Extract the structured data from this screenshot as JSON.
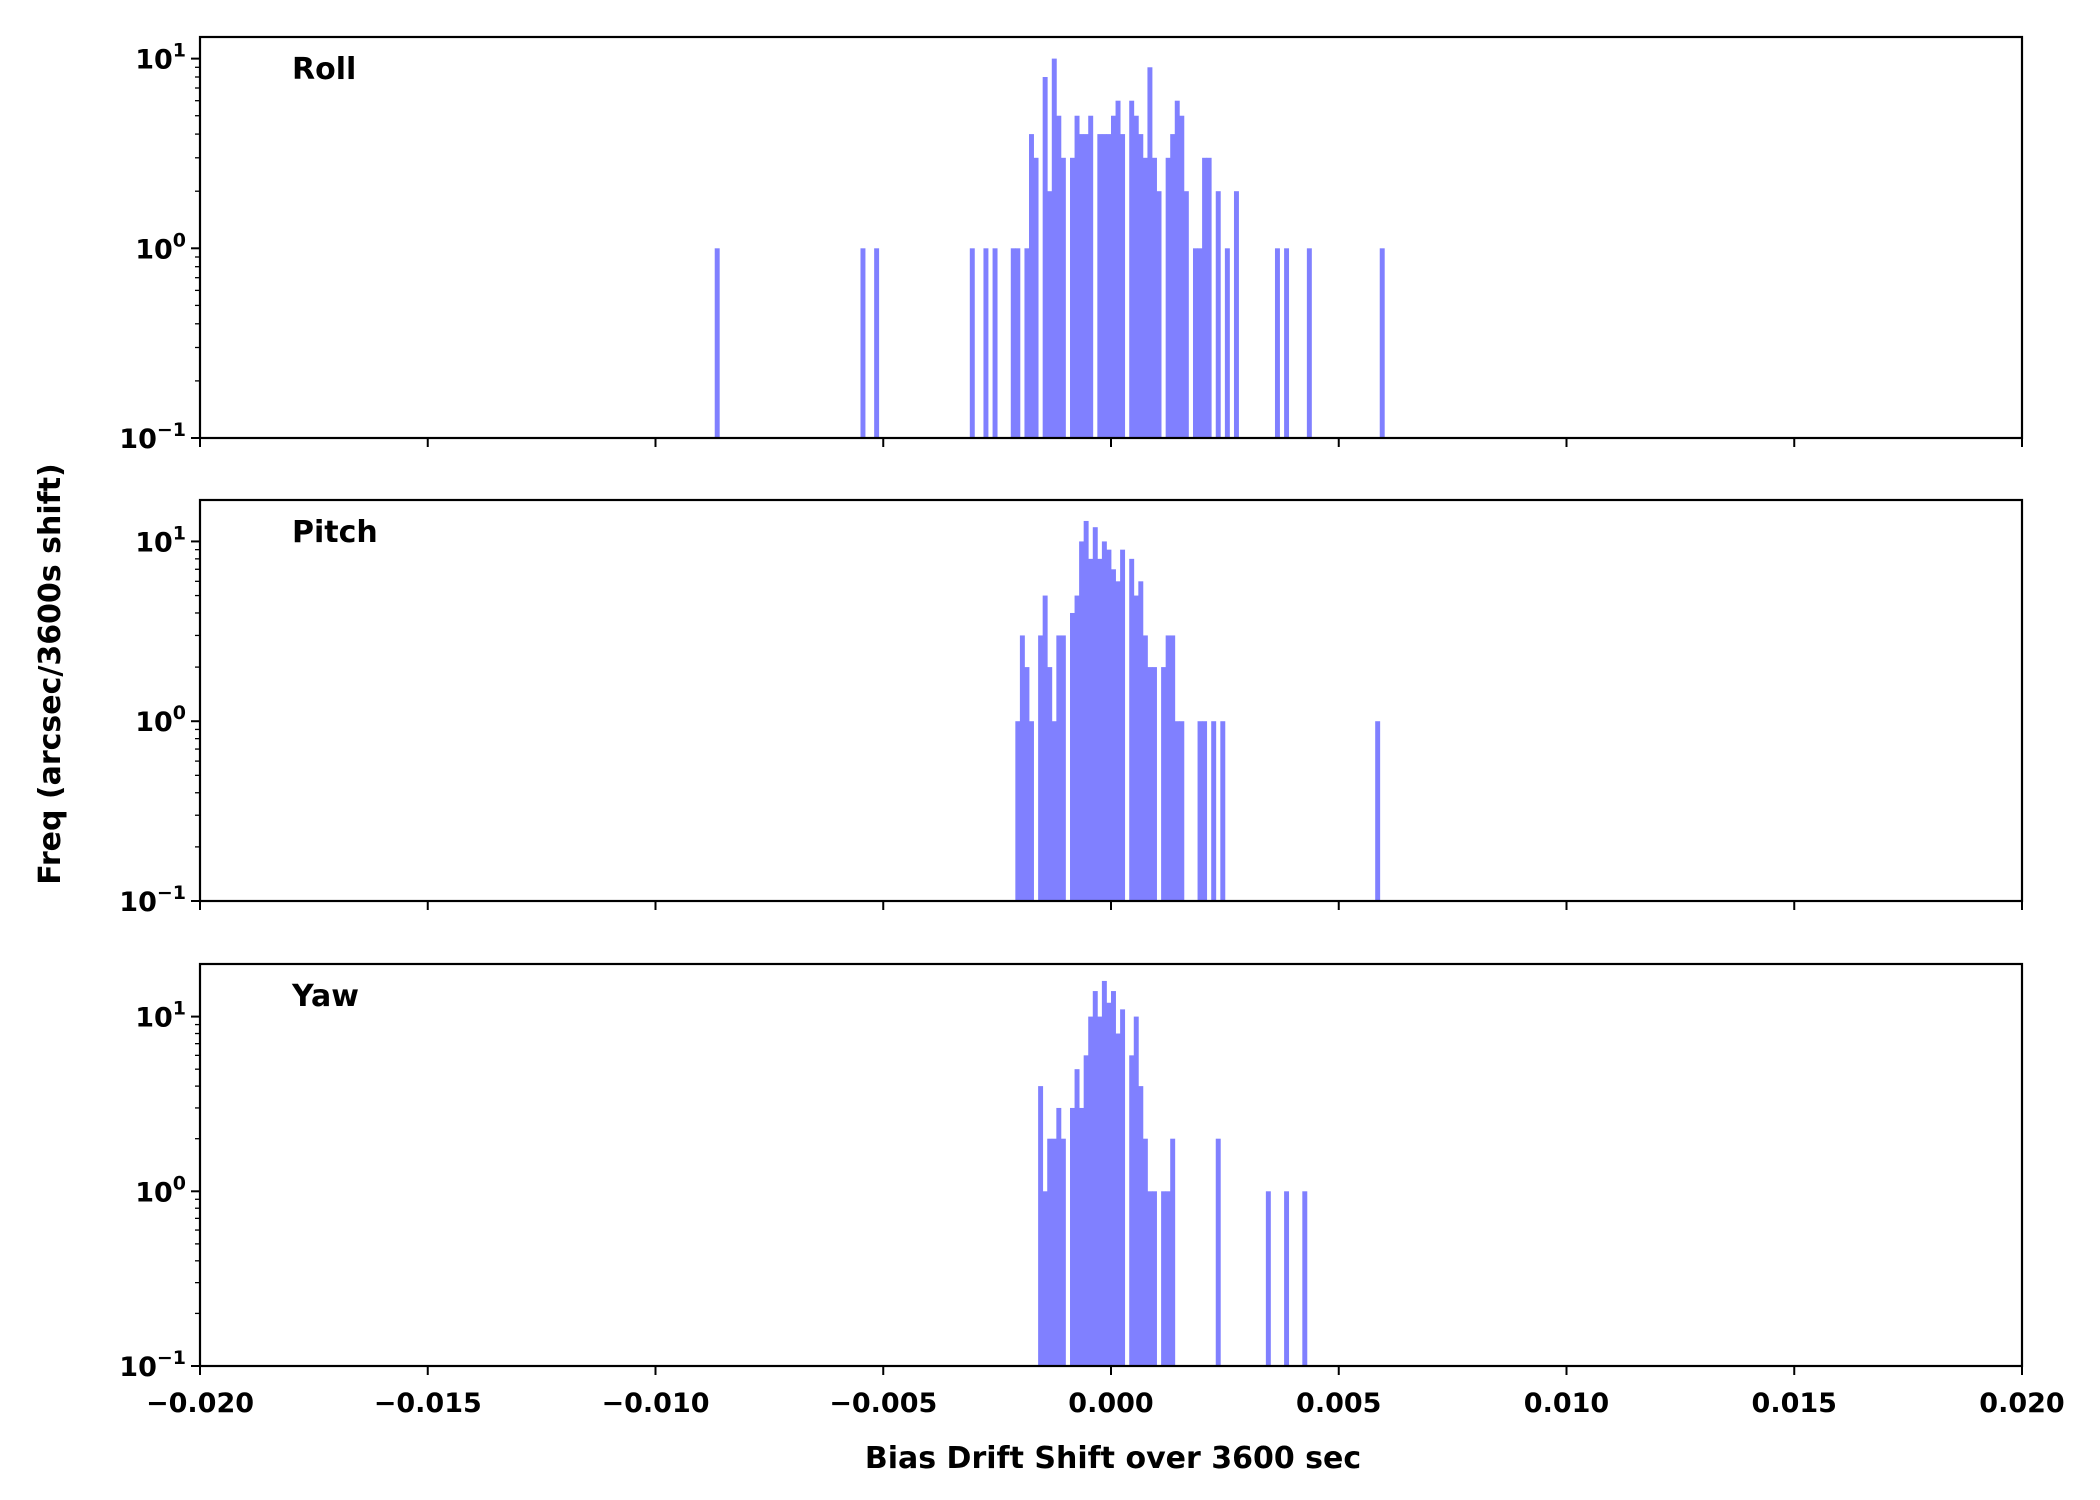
{
  "chart_data": {
    "type": "bar",
    "xlabel": "Bias Drift Shift over 3600 sec",
    "ylabel": "Freq (arcsec/3600s shift)",
    "xlim": [
      -0.02,
      0.02
    ],
    "x_ticks": [
      "−0.020",
      "−0.015",
      "−0.010",
      "−0.005",
      "0.000",
      "0.005",
      "0.010",
      "0.015",
      "0.020"
    ],
    "y_scale": "log",
    "bar_color": "#8080ff",
    "grid": false,
    "panels": [
      {
        "title": "Roll",
        "ylim": [
          0.1,
          13
        ],
        "y_ticks": [
          {
            "base": "10",
            "exp": "−1"
          },
          {
            "base": "10",
            "exp": "0"
          },
          {
            "base": "10",
            "exp": "1"
          }
        ],
        "bins": [
          [
            -0.0087,
            1
          ],
          [
            -0.0055,
            1
          ],
          [
            -0.0052,
            1
          ],
          [
            -0.0031,
            1
          ],
          [
            -0.0028,
            1
          ],
          [
            -0.0026,
            1
          ],
          [
            -0.0022,
            1
          ],
          [
            -0.0021,
            1
          ],
          [
            -0.0019,
            1
          ],
          [
            -0.0018,
            4
          ],
          [
            -0.0017,
            3
          ],
          [
            -0.0015,
            8
          ],
          [
            -0.0014,
            2
          ],
          [
            -0.0013,
            10
          ],
          [
            -0.0012,
            5
          ],
          [
            -0.0011,
            3
          ],
          [
            -0.0009,
            3
          ],
          [
            -0.0008,
            5
          ],
          [
            -0.0007,
            4
          ],
          [
            -0.0006,
            4
          ],
          [
            -0.0005,
            5
          ],
          [
            -0.0003,
            4
          ],
          [
            -0.0002,
            4
          ],
          [
            -0.0001,
            4
          ],
          [
            0.0,
            5
          ],
          [
            0.0001,
            6
          ],
          [
            0.0002,
            4
          ],
          [
            0.0004,
            6
          ],
          [
            0.0005,
            5
          ],
          [
            0.0006,
            4
          ],
          [
            0.0007,
            3
          ],
          [
            0.0008,
            9
          ],
          [
            0.0009,
            3
          ],
          [
            0.001,
            2
          ],
          [
            0.0012,
            3
          ],
          [
            0.0013,
            4
          ],
          [
            0.0014,
            6
          ],
          [
            0.0015,
            5
          ],
          [
            0.0016,
            2
          ],
          [
            0.0018,
            1
          ],
          [
            0.0019,
            1
          ],
          [
            0.002,
            3
          ],
          [
            0.0021,
            3
          ],
          [
            0.0023,
            2
          ],
          [
            0.0025,
            1
          ],
          [
            0.0027,
            2
          ],
          [
            0.0036,
            1
          ],
          [
            0.0038,
            1
          ],
          [
            0.0043,
            1
          ],
          [
            0.0059,
            1
          ]
        ]
      },
      {
        "title": "Pitch",
        "ylim": [
          0.1,
          17
        ],
        "y_ticks": [
          {
            "base": "10",
            "exp": "−1"
          },
          {
            "base": "10",
            "exp": "0"
          },
          {
            "base": "10",
            "exp": "1"
          }
        ],
        "bins": [
          [
            -0.0021,
            1
          ],
          [
            -0.002,
            3
          ],
          [
            -0.0019,
            2
          ],
          [
            -0.0018,
            1
          ],
          [
            -0.0016,
            3
          ],
          [
            -0.0015,
            5
          ],
          [
            -0.0014,
            2
          ],
          [
            -0.0013,
            1
          ],
          [
            -0.0012,
            3
          ],
          [
            -0.0011,
            3
          ],
          [
            -0.0009,
            4
          ],
          [
            -0.0008,
            5
          ],
          [
            -0.0007,
            10
          ],
          [
            -0.0006,
            13
          ],
          [
            -0.0005,
            8
          ],
          [
            -0.0004,
            12
          ],
          [
            -0.0003,
            8
          ],
          [
            -0.0002,
            10
          ],
          [
            -0.0001,
            9
          ],
          [
            0.0,
            7
          ],
          [
            0.0001,
            6
          ],
          [
            0.0002,
            9
          ],
          [
            0.0004,
            8
          ],
          [
            0.0005,
            5
          ],
          [
            0.0006,
            6
          ],
          [
            0.0007,
            3
          ],
          [
            0.0008,
            2
          ],
          [
            0.0009,
            2
          ],
          [
            0.0011,
            2
          ],
          [
            0.0012,
            3
          ],
          [
            0.0013,
            3
          ],
          [
            0.0014,
            1
          ],
          [
            0.0015,
            1
          ],
          [
            0.0019,
            1
          ],
          [
            0.002,
            1
          ],
          [
            0.0022,
            1
          ],
          [
            0.0024,
            1
          ],
          [
            0.0058,
            1
          ]
        ]
      },
      {
        "title": "Yaw",
        "ylim": [
          0.1,
          20
        ],
        "y_ticks": [
          {
            "base": "10",
            "exp": "−1"
          },
          {
            "base": "10",
            "exp": "0"
          },
          {
            "base": "10",
            "exp": "1"
          }
        ],
        "bins": [
          [
            -0.0016,
            4
          ],
          [
            -0.0015,
            1
          ],
          [
            -0.0014,
            2
          ],
          [
            -0.0013,
            2
          ],
          [
            -0.0012,
            3
          ],
          [
            -0.0011,
            2
          ],
          [
            -0.0009,
            3
          ],
          [
            -0.0008,
            5
          ],
          [
            -0.0007,
            3
          ],
          [
            -0.0006,
            6
          ],
          [
            -0.0005,
            10
          ],
          [
            -0.0004,
            14
          ],
          [
            -0.0003,
            10
          ],
          [
            -0.0002,
            16
          ],
          [
            -0.0001,
            12
          ],
          [
            0.0,
            14
          ],
          [
            0.0001,
            8
          ],
          [
            0.0002,
            11
          ],
          [
            0.0004,
            6
          ],
          [
            0.0005,
            10
          ],
          [
            0.0006,
            4
          ],
          [
            0.0007,
            2
          ],
          [
            0.0008,
            1
          ],
          [
            0.0009,
            1
          ],
          [
            0.0011,
            1
          ],
          [
            0.0012,
            1
          ],
          [
            0.0013,
            2
          ],
          [
            0.0023,
            2
          ],
          [
            0.0034,
            1
          ],
          [
            0.0038,
            1
          ],
          [
            0.0042,
            1
          ]
        ]
      }
    ]
  }
}
